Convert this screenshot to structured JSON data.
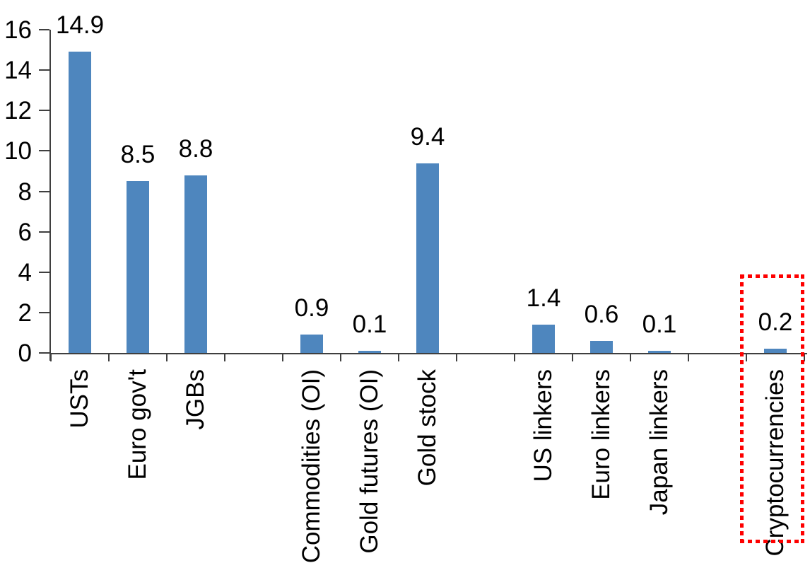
{
  "chart_data": {
    "type": "bar",
    "title": "",
    "xlabel": "",
    "ylabel": "",
    "categories": [
      "USTs",
      "Euro gov't",
      "JGBs",
      "",
      "Commodities (OI)",
      "Gold futures (OI)",
      "Gold stock",
      "",
      "US linkers",
      "Euro linkers",
      "Japan linkers",
      "",
      "Cryptocurrencies"
    ],
    "values": [
      14.9,
      8.5,
      8.8,
      null,
      0.9,
      0.1,
      9.4,
      null,
      1.4,
      0.6,
      0.1,
      null,
      0.2
    ],
    "value_labels": [
      "14.9",
      "8.5",
      "8.8",
      "",
      "0.9",
      "0.1",
      "9.4",
      "",
      "1.4",
      "0.6",
      "0.1",
      "",
      "0.2"
    ],
    "ylim": [
      0,
      16
    ],
    "ytick_step": 2,
    "ytick_labels": [
      "0",
      "2",
      "4",
      "6",
      "8",
      "10",
      "12",
      "14",
      "16"
    ],
    "grid": false,
    "legend": null,
    "bar_color": "#4e86be",
    "axis_color": "#3f3f3f",
    "text_color": "#000000",
    "annotation": {
      "type": "dotted-box",
      "target": "Cryptocurrencies",
      "color": "#fe0000"
    }
  }
}
